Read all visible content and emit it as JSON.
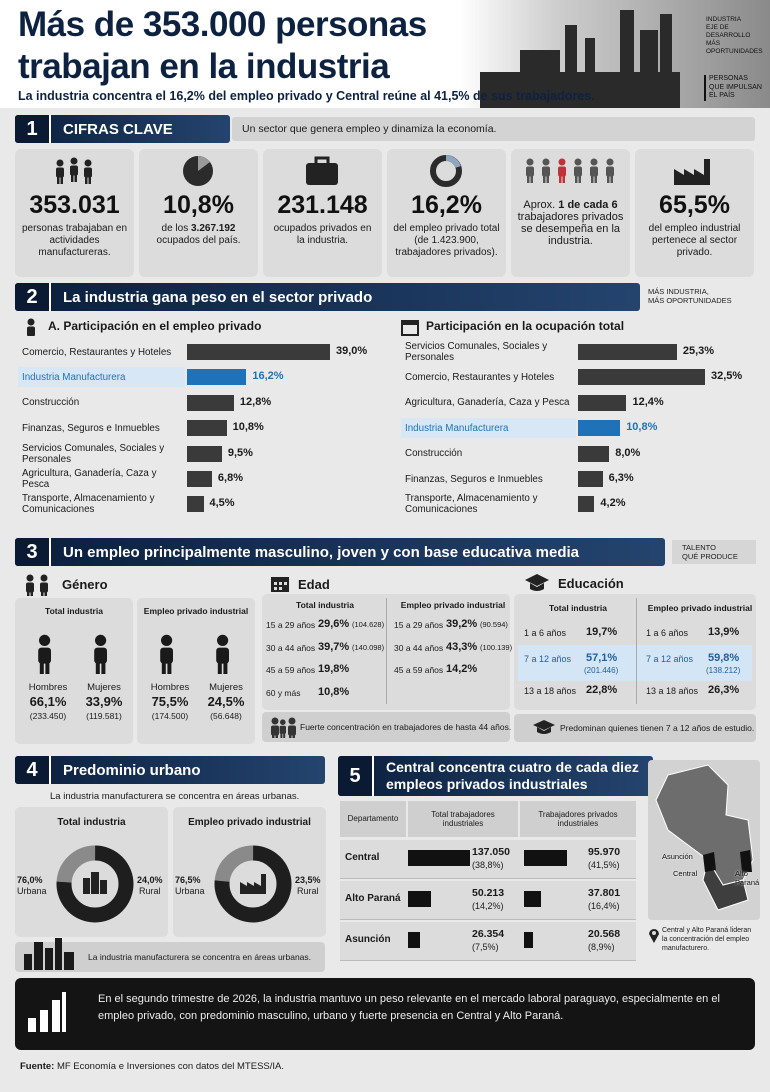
{
  "header": {
    "title": [
      "Más de 353.000 personas",
      "trabajan en la industria"
    ],
    "subtitle": "La industria concentra el 16,2% del empleo privado y Central reúne al 41,5% de sus trabajadores.",
    "tag_top": [
      "INDUSTRIA",
      "EJE DE",
      "DESARROLLO",
      "MÁS OPORTUNIDADES"
    ],
    "tag_bottom": [
      "PERSONAS",
      "QUE IMPULSAN",
      "EL PAÍS"
    ]
  },
  "section1": {
    "number": "1",
    "title": "CIFRAS CLAVE",
    "subtitle": "Un sector que genera empleo y dinamiza la economía.",
    "cards": [
      {
        "value": "353.031",
        "text": "personas trabajaban en actividades manufactureras."
      },
      {
        "value": "10,8%",
        "pre": "de los ",
        "bold": "3.267.192",
        "post": " ocupados del país."
      },
      {
        "value": "231.148",
        "text": "ocupados privados en la industria."
      },
      {
        "value": "16,2%",
        "text": "del empleo privado total (de 1.423.900, trabajadores privados)."
      },
      {
        "pre": "Aprox. ",
        "bold": "1 de cada 6",
        "post": " trabajadores privados se desempeña en la industria."
      },
      {
        "value": "65,5%",
        "text": "del empleo industrial pertenece al sector privado."
      }
    ]
  },
  "section2": {
    "number": "2",
    "title": "La industria gana peso en el sector privado",
    "tag": [
      "MÁS INDUSTRIA,",
      "MÁS OPORTUNIDADES"
    ],
    "charts": [
      {
        "title": "A. Participación en el empleo privado",
        "categories": [
          "Comercio, Restaurantes y Hoteles",
          "Industria Manufacturera",
          "Construcción",
          "Finanzas, Seguros e Inmuebles",
          "Servicios Comunales, Sociales y Personales",
          "Agricultura, Ganadería, Caza y Pesca",
          "Transporte, Almacenamiento y Comunicaciones"
        ],
        "values": [
          39.0,
          16.2,
          12.8,
          10.8,
          9.5,
          6.8,
          4.5
        ],
        "value_labels": [
          "39,0%",
          "16,2%",
          "12,8%",
          "10,8%",
          "9,5%",
          "6,8%",
          "4,5%"
        ],
        "bar_color": "#3a3a3a",
        "highlight_color": "#1f72b8",
        "highlight": 1
      },
      {
        "title": "Participación en la ocupación total",
        "categories": [
          "Servicios Comunales, Sociales y Personales",
          "Comercio, Restaurantes y Hoteles",
          "Agricultura, Ganadería, Caza y Pesca",
          "Industria Manufacturera",
          "Construcción",
          "Finanzas, Seguros e Inmuebles",
          "Transporte, Almacenamiento y Comunicaciones"
        ],
        "values": [
          25.3,
          32.5,
          12.4,
          10.8,
          8.0,
          6.3,
          4.2
        ],
        "value_labels": [
          "25,3%",
          "32,5%",
          "12,4%",
          "10,8%",
          "8,0%",
          "6,3%",
          "4,2%"
        ],
        "bar_color": "#3a3a3a",
        "highlight_color": "#1f72b8",
        "highlight": 3
      }
    ]
  },
  "section3": {
    "number": "3",
    "title": "Un empleo principalmente masculino, joven y con base educativa media",
    "tag": [
      "TALENTO",
      "QUÉ PRODUCE"
    ],
    "gender": {
      "title": "Género",
      "panels": [
        {
          "title": "Total industria",
          "items": [
            {
              "label": "Hombres",
              "pct": "66,1%",
              "count": "(233.450)"
            },
            {
              "label": "Mujeres",
              "pct": "33,9%",
              "count": "(119.581)"
            }
          ]
        },
        {
          "title": "Empleo privado industrial",
          "items": [
            {
              "label": "Hombres",
              "pct": "75,5%",
              "count": "(174.500)"
            },
            {
              "label": "Mujeres",
              "pct": "24,5%",
              "count": "(56.648)"
            }
          ]
        }
      ]
    },
    "age": {
      "title": "Edad",
      "panels": [
        {
          "title": "Total industria",
          "rows": [
            {
              "label": "15 a 29 años",
              "pct": "29,6%",
              "count": "(104.628)"
            },
            {
              "label": "30 a 44 años",
              "pct": "39,7%",
              "count": "(140.098)"
            },
            {
              "label": "45 a 59 años",
              "pct": "19,8%"
            },
            {
              "label": "60 y más",
              "pct": "10,8%"
            }
          ]
        },
        {
          "title": "Empleo privado industrial",
          "rows": [
            {
              "label": "15 a 29 años",
              "pct": "39,2%",
              "count": "(90.594)"
            },
            {
              "label": "30 a 44 años",
              "pct": "43,3%",
              "count": "(100.139)"
            },
            {
              "label": "45 a 59 años",
              "pct": "14,2%"
            }
          ]
        }
      ],
      "note": "Fuerte concentración en trabajadores de hasta 44 años."
    },
    "education": {
      "title": "Educación",
      "panels": [
        {
          "title": "Total industria",
          "rows": [
            {
              "label": "1 a 6 años",
              "pct": "19,7%"
            },
            {
              "label": "7 a 12 años",
              "pct": "57,1%",
              "count": "(201.446)"
            },
            {
              "label": "13 a 18 años",
              "pct": "22,8%"
            }
          ]
        },
        {
          "title": "Empleo privado industrial",
          "rows": [
            {
              "label": "1 a 6 años",
              "pct": "13,9%"
            },
            {
              "label": "7 a 12 años",
              "pct": "59,8%",
              "count": "(138.212)"
            },
            {
              "label": "13 a 18 años",
              "pct": "26,3%"
            }
          ]
        }
      ],
      "note": "Predominan quienes tienen 7 a 12 años de estudio."
    }
  },
  "section4": {
    "number": "4",
    "title": "Predominio urbano",
    "subtitle": "La industria manufacturera se concentra en áreas urbanas.",
    "panels": [
      {
        "title": "Total industria",
        "urban": {
          "value": 76.0,
          "label": "76,0%",
          "name": "Urbana"
        },
        "rural": {
          "value": 24.0,
          "label": "24,0%",
          "name": "Rural"
        }
      },
      {
        "title": "Empleo privado industrial",
        "urban": {
          "value": 76.5,
          "label": "76,5%",
          "name": "Urbana"
        },
        "rural": {
          "value": 23.5,
          "label": "23,5%",
          "name": "Rural"
        }
      }
    ],
    "note": "La industria manufacturera se concentra en áreas urbanas."
  },
  "section5": {
    "number": "5",
    "title": "Central  concentra cuatro de cada diez empleos privados industriales",
    "table": {
      "headers": [
        "Departamento",
        "Total trabajadores industriales",
        "Trabajadores privados industriales"
      ],
      "rows": [
        {
          "name": "Central",
          "total": {
            "value": 137050,
            "label": "137.050",
            "share": "(38,8%)"
          },
          "private": {
            "value": 95970,
            "label": "95.970",
            "share": "(41,5%)"
          }
        },
        {
          "name": "Alto Paraná",
          "total": {
            "value": 50213,
            "label": "50.213",
            "share": "(14,2%)"
          },
          "private": {
            "value": 37801,
            "label": "37.801",
            "share": "(16,4%)"
          }
        },
        {
          "name": "Asunción",
          "total": {
            "value": 26354,
            "label": "26.354",
            "share": "(7,5%)"
          },
          "private": {
            "value": 20568,
            "label": "20.568",
            "share": "(8,9%)"
          }
        }
      ]
    },
    "map_labels": [
      "Asunción",
      "Central",
      "Alto Paraná"
    ],
    "note": "Central y Alto Paraná lideran la concentración del empleo manufacturero."
  },
  "footer": {
    "text": "En el segundo trimestre de 2026, la industria mantuvo un peso relevante en el mercado laboral paraguayo, especialmente en el empleo privado, con predominio masculino, urbano y fuerte presencia en Central y Alto Paraná."
  },
  "source": {
    "label": "Fuente:",
    "text": " MF Economía e Inversiones con datos del MTESS/IA."
  }
}
